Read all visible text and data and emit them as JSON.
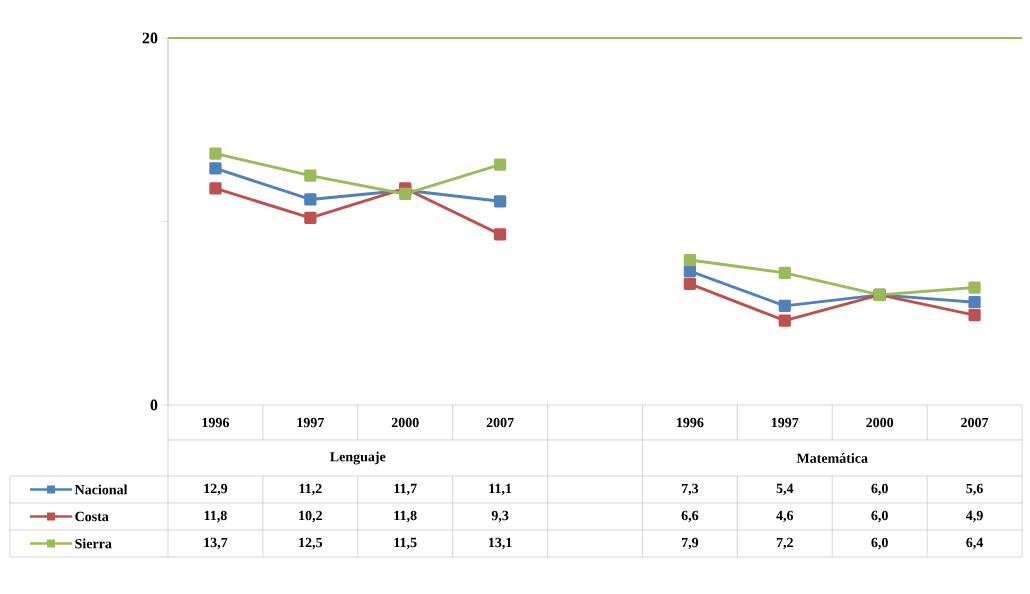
{
  "chart_data": {
    "type": "line",
    "categories": [
      "1996",
      "1997",
      "2000",
      "2007",
      null,
      "1996",
      "1997",
      "2000",
      "2007"
    ],
    "annotations": [
      "Lenguaje",
      "Matemática"
    ],
    "series": [
      {
        "name": "Nacional",
        "color": "#4f81bd",
        "values": [
          12.9,
          11.2,
          11.7,
          11.1,
          null,
          7.3,
          5.4,
          6.0,
          5.6
        ],
        "value_labels": [
          "12,9",
          "11,2",
          "11,7",
          "11,1",
          null,
          "7,3",
          "5,4",
          "6,0",
          "5,6"
        ]
      },
      {
        "name": "Costa",
        "color": "#c0504d",
        "values": [
          11.8,
          10.2,
          11.8,
          9.3,
          null,
          6.6,
          4.6,
          6.0,
          4.9
        ],
        "value_labels": [
          "11,8",
          "10,2",
          "11,8",
          "9,3",
          null,
          "6,6",
          "4,6",
          "6,0",
          "4,9"
        ]
      },
      {
        "name": "Sierra",
        "color": "#9bbb59",
        "values": [
          13.7,
          12.5,
          11.5,
          13.1,
          null,
          7.9,
          7.2,
          6.0,
          6.4
        ],
        "value_labels": [
          "13,7",
          "12,5",
          "11,5",
          "13,1",
          null,
          "7,9",
          "7,2",
          "6,0",
          "6,4"
        ]
      }
    ],
    "ylim": [
      0,
      20
    ],
    "yticks": [
      0,
      {
        "value": 10,
        "label": null
      },
      20
    ],
    "ref_lines": [
      {
        "axis": "y",
        "value": 20,
        "color": "#9bbb59"
      }
    ],
    "legend": "bottom left",
    "marker": "square",
    "line_style": "solid"
  }
}
